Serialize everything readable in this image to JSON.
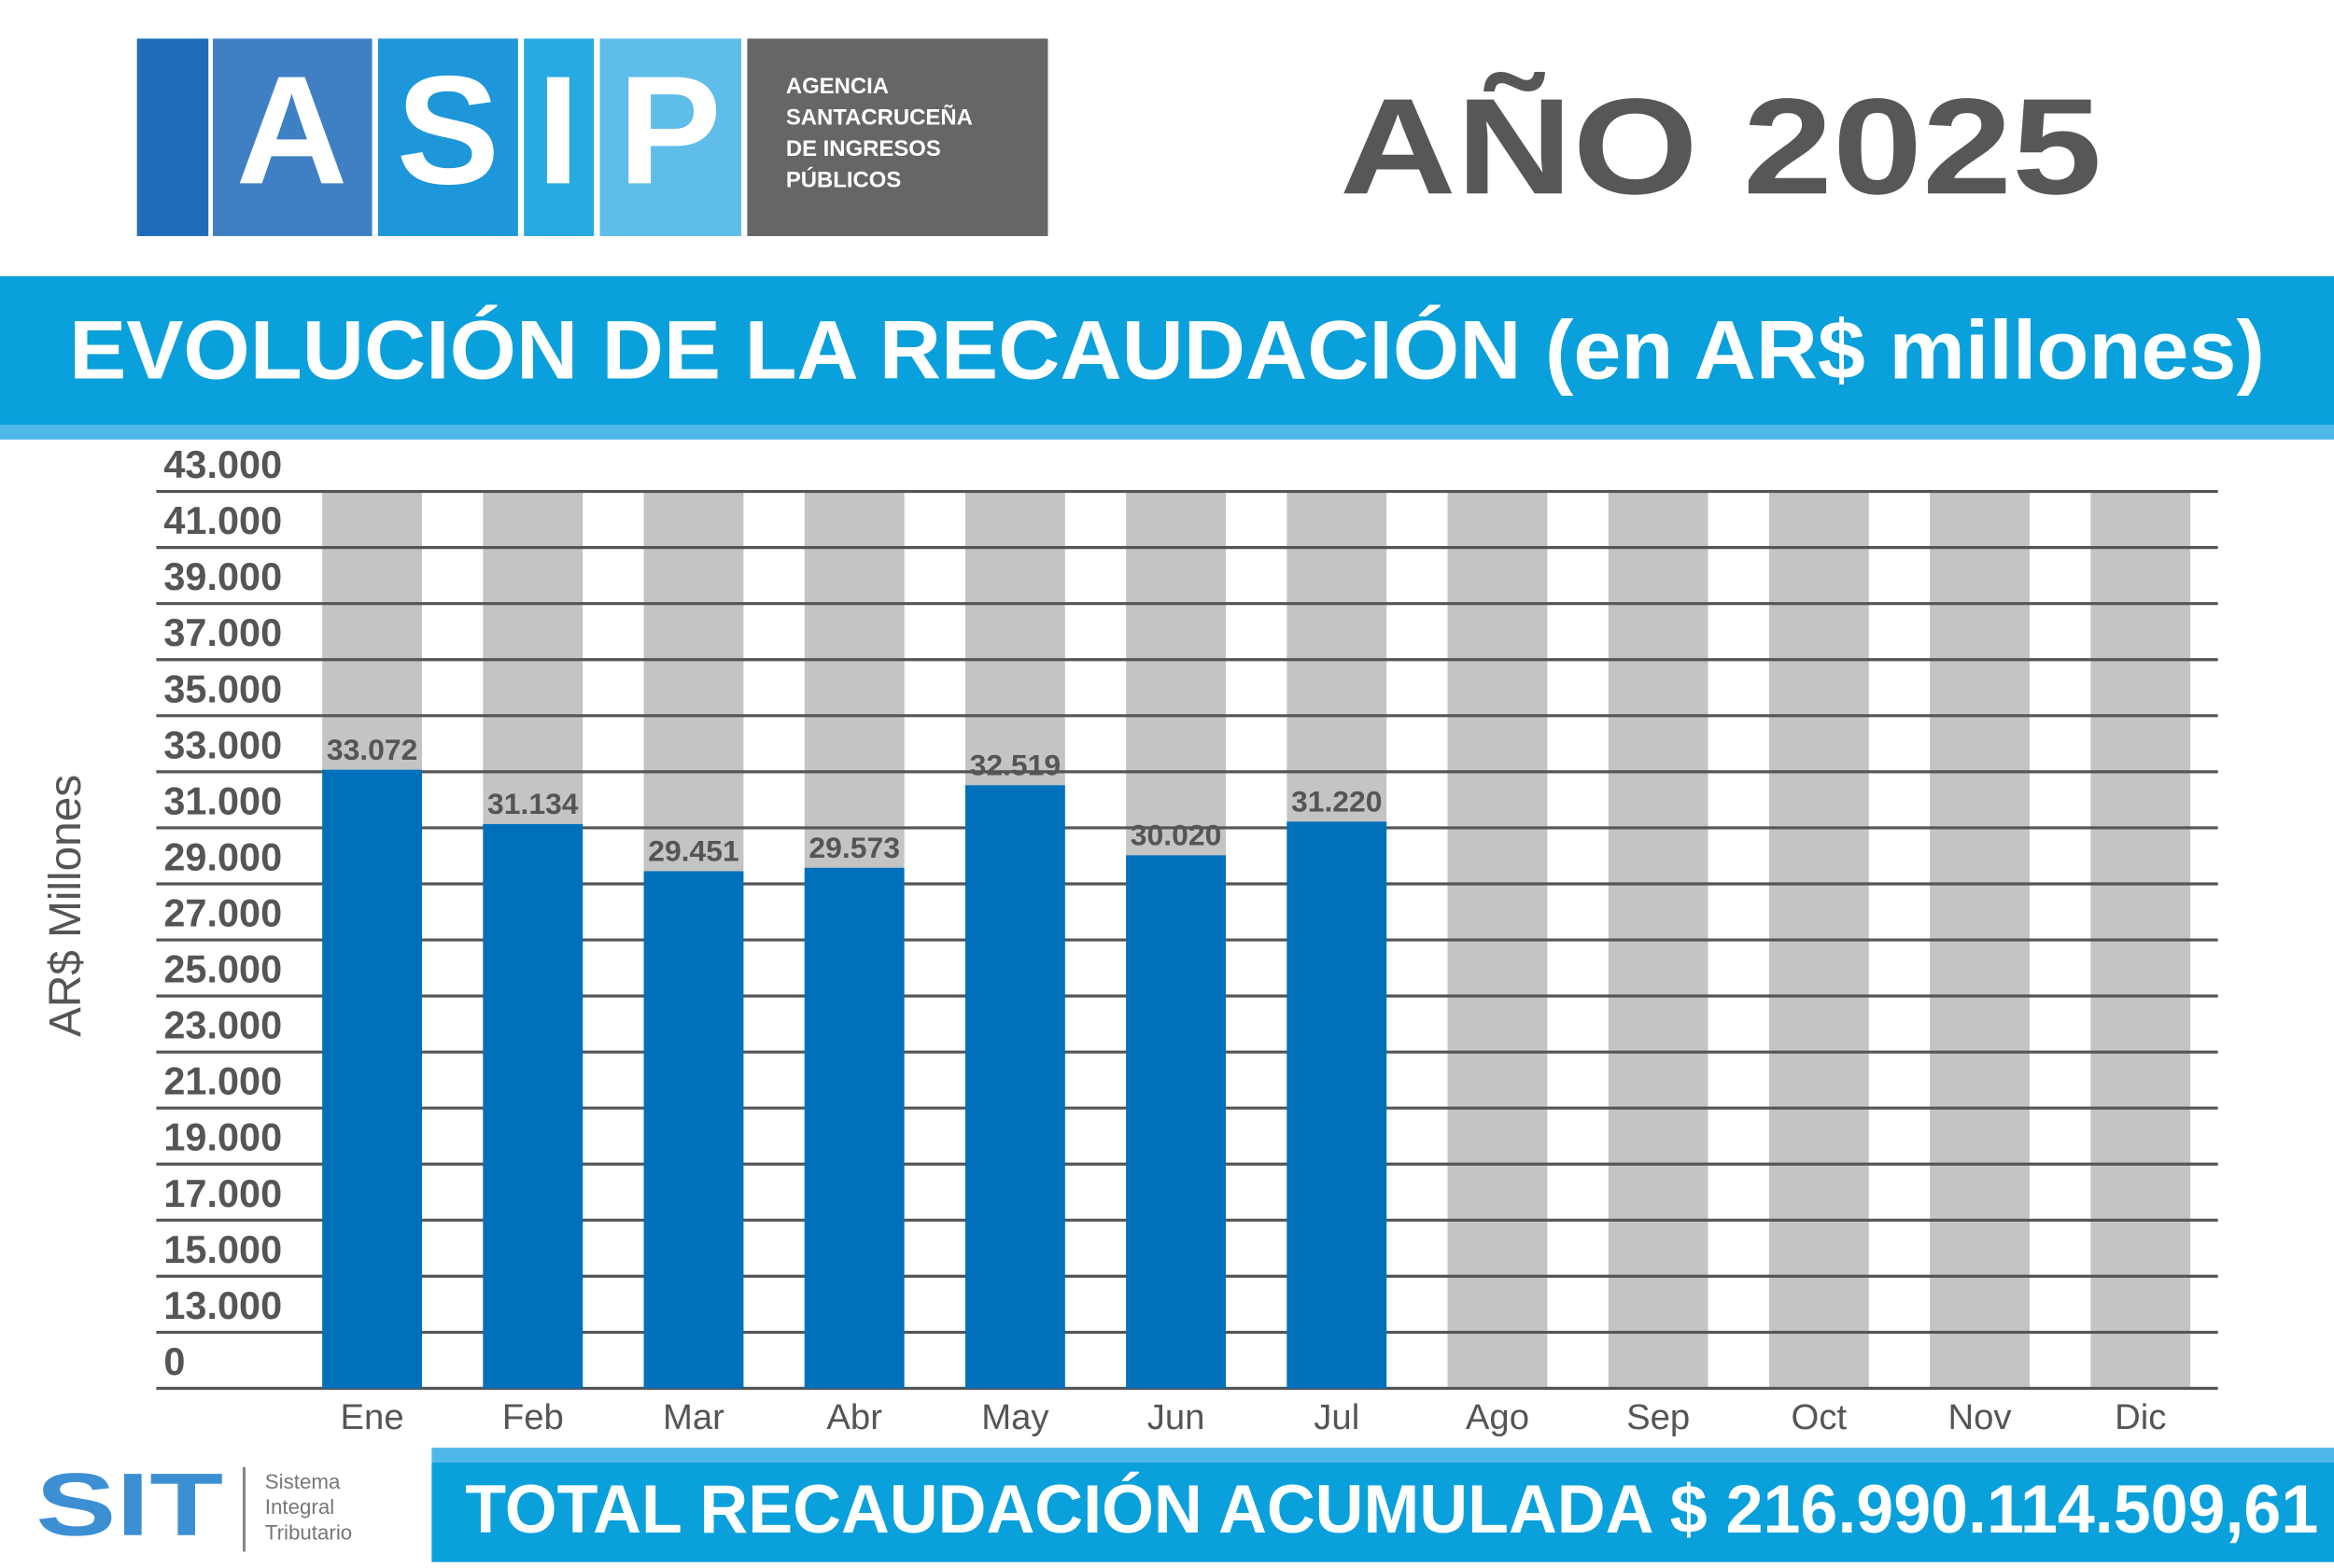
{
  "header": {
    "logo_letters": [
      "A",
      "S",
      "I",
      "P"
    ],
    "agency_lines": [
      "AGENCIA",
      "SANTACRUCEÑA",
      "DE INGRESOS",
      "PÚBLICOS"
    ],
    "year": "AÑO 2025"
  },
  "chart_data": {
    "type": "bar",
    "title": "EVOLUCIÓN DE LA RECAUDACIÓN (en AR$ millones)",
    "y_label": "AR$ Millones",
    "categories": [
      "Ene",
      "Feb",
      "Mar",
      "Abr",
      "May",
      "Jun",
      "Jul",
      "Ago",
      "Sep",
      "Oct",
      "Nov",
      "Dic"
    ],
    "values": [
      33072,
      31134,
      29451,
      29573,
      32519,
      30020,
      31220,
      null,
      null,
      null,
      null,
      null
    ],
    "value_labels": [
      "33.072",
      "31.134",
      "29.451",
      "29.573",
      "32.519",
      "30.020",
      "31.220",
      null,
      null,
      null,
      null,
      null
    ],
    "color": "#0070bb",
    "ylim": [
      0,
      43000
    ],
    "yticks": [
      0,
      {
        "value": 13000,
        "label": "13.000"
      },
      {
        "value": 15000,
        "label": "15.000"
      },
      {
        "value": 17000,
        "label": "17.000"
      },
      {
        "value": 19000,
        "label": "19.000"
      },
      {
        "value": 21000,
        "label": "21.000"
      },
      {
        "value": 23000,
        "label": "23.000"
      },
      {
        "value": 25000,
        "label": "25.000"
      },
      {
        "value": 27000,
        "label": "27.000"
      },
      {
        "value": 29000,
        "label": "29.000"
      },
      {
        "value": 31000,
        "label": "31.000"
      },
      {
        "value": 33000,
        "label": "33.000"
      },
      {
        "value": 35000,
        "label": "35.000"
      },
      {
        "value": 37000,
        "label": "37.000"
      },
      {
        "value": 39000,
        "label": "39.000"
      },
      {
        "value": 41000,
        "label": "41.000"
      },
      {
        "value": 43000,
        "label": "43.000"
      }
    ],
    "grid": true
  },
  "footer": {
    "logo": "SIT",
    "logo_lines": [
      "Sistema",
      "Integral",
      "Tributario"
    ],
    "total": "TOTAL RECAUDACIÓN ACUMULADA $ 216.990.114.509,61"
  }
}
